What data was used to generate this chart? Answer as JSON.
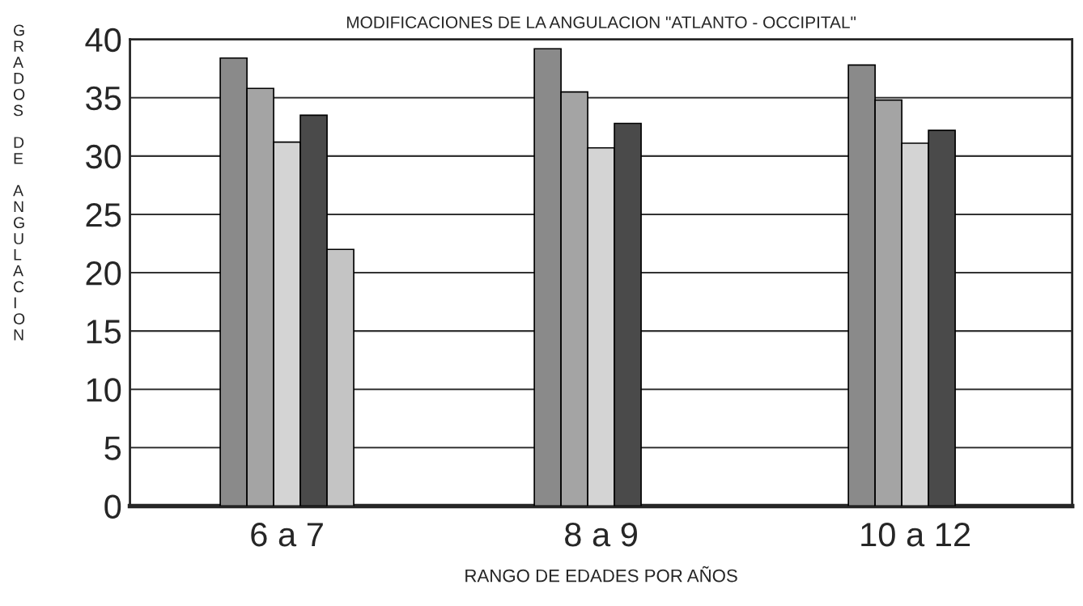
{
  "chart_data": {
    "type": "bar",
    "title": "MODIFICACIONES DE LA ANGULACION \"ATLANTO - OCCIPITAL\"",
    "xlabel": "RANGO DE EDADES POR AÑOS",
    "ylabel": "GRADOS DE ANGULACION",
    "categories": [
      "6 a 7",
      "8 a 9",
      "10 a 12"
    ],
    "series": [
      {
        "color": "#8a8a8a",
        "values": [
          38.4,
          39.2,
          37.8
        ]
      },
      {
        "color": "#a4a4a4",
        "values": [
          35.8,
          35.5,
          34.8
        ]
      },
      {
        "color": "#d4d4d4",
        "values": [
          31.2,
          30.7,
          31.1
        ]
      },
      {
        "color": "#4a4a4a",
        "values": [
          33.5,
          32.8,
          32.2
        ]
      },
      {
        "color": "#c4c4c4",
        "values": [
          22.0,
          null,
          null
        ]
      }
    ],
    "ylim": [
      0,
      40
    ],
    "yticks": [
      0,
      5,
      10,
      15,
      20,
      25,
      30,
      35,
      40
    ],
    "grid": "y"
  }
}
